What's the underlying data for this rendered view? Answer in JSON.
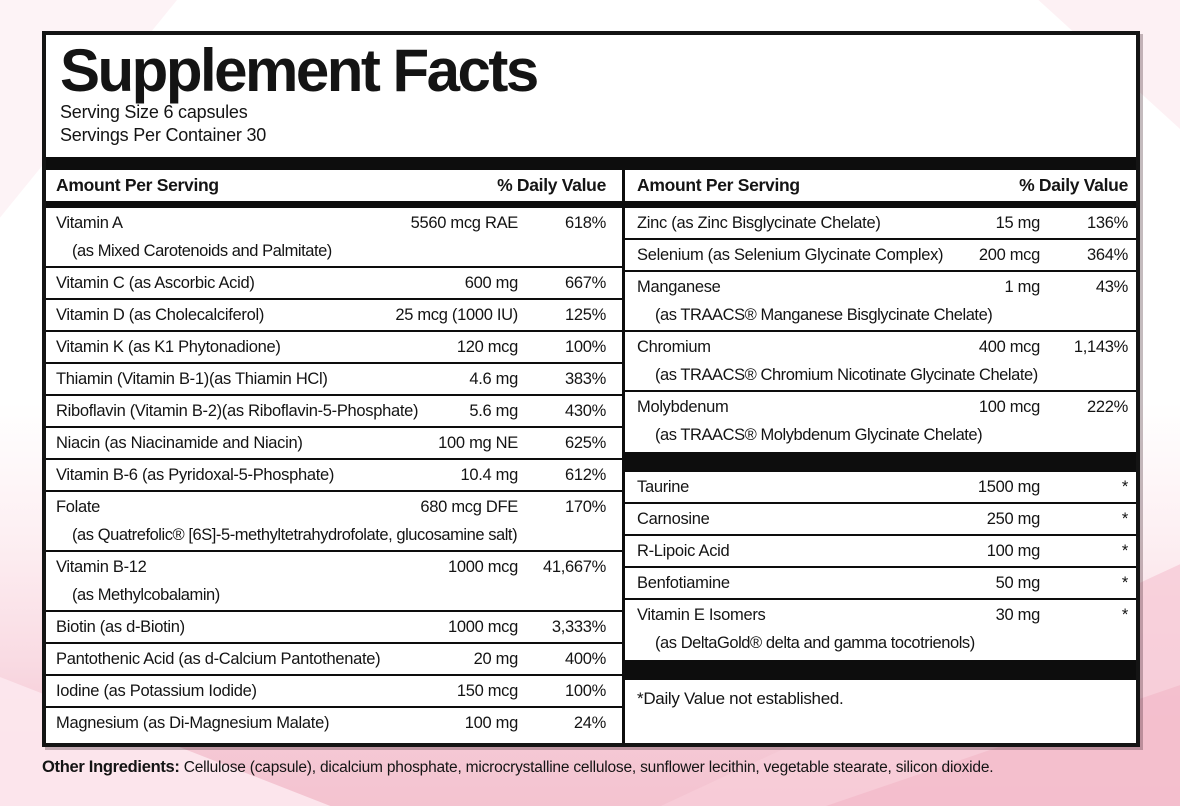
{
  "page": {
    "colors": {
      "pink_strong": "#f4c3d0",
      "pink_medium": "#f6c9d5",
      "pink_light": "#fbe4ea",
      "panel_border": "#141414"
    }
  },
  "label": {
    "title": "Supplement Facts",
    "serving_size": "Serving Size 6 capsules",
    "servings_per_container": "Servings Per Container 30",
    "column_headers": {
      "amount": "Amount Per Serving",
      "daily_value": "% Daily Value"
    },
    "left_column": {
      "rows": [
        {
          "name": "Vitamin A",
          "sub": "(as Mixed Carotenoids and Palmitate)",
          "amount": "5560 mcg RAE",
          "dv": "618%"
        },
        {
          "name": "Vitamin C (as Ascorbic Acid)",
          "amount": "600 mg",
          "dv": "667%"
        },
        {
          "name": "Vitamin D (as Cholecalciferol)",
          "amount": "25 mcg (1000 IU)",
          "dv": "125%"
        },
        {
          "name": "Vitamin K (as K1 Phytonadione)",
          "amount": "120 mcg",
          "dv": "100%"
        },
        {
          "name": "Thiamin (Vitamin B-1)(as Thiamin HCl)",
          "amount": "4.6 mg",
          "dv": "383%"
        },
        {
          "name": "Riboflavin (Vitamin B-2)(as Riboflavin-5-Phosphate)",
          "amount": "5.6 mg",
          "dv": "430%"
        },
        {
          "name": "Niacin (as Niacinamide and Niacin)",
          "amount": "100 mg NE",
          "dv": "625%"
        },
        {
          "name": "Vitamin B-6 (as Pyridoxal-5-Phosphate)",
          "amount": "10.4 mg",
          "dv": "612%"
        },
        {
          "name": "Folate",
          "sub": "(as Quatrefolic® [6S]-5-methyltetrahydrofolate, glucosamine salt)",
          "amount": "680 mcg DFE",
          "dv": "170%"
        },
        {
          "name": "Vitamin B-12",
          "sub": "(as Methylcobalamin)",
          "amount": "1000 mcg",
          "dv": "41,667%"
        },
        {
          "name": "Biotin (as d-Biotin)",
          "amount": "1000 mcg",
          "dv": "3,333%"
        },
        {
          "name": "Pantothenic Acid (as d-Calcium Pantothenate)",
          "amount": "20 mg",
          "dv": "400%"
        },
        {
          "name": "Iodine (as Potassium Iodide)",
          "amount": "150 mcg",
          "dv": "100%"
        },
        {
          "name": "Magnesium (as Di-Magnesium Malate)",
          "amount": "100 mg",
          "dv": "24%"
        }
      ]
    },
    "right_column": {
      "minerals": [
        {
          "name": "Zinc (as Zinc Bisglycinate Chelate)",
          "amount": "15 mg",
          "dv": "136%"
        },
        {
          "name": "Selenium (as Selenium Glycinate Complex)",
          "amount": "200 mcg",
          "dv": "364%"
        },
        {
          "name": "Manganese",
          "sub": "(as TRAACS® Manganese Bisglycinate Chelate)",
          "amount": "1 mg",
          "dv": "43%"
        },
        {
          "name": "Chromium",
          "sub": "(as TRAACS® Chromium Nicotinate Glycinate Chelate)",
          "amount": "400 mcg",
          "dv": "1,143%"
        },
        {
          "name": "Molybdenum",
          "sub": "(as TRAACS® Molybdenum Glycinate Chelate)",
          "amount": "100 mcg",
          "dv": "222%"
        }
      ],
      "other_actives": [
        {
          "name": "Taurine",
          "amount": "1500 mg",
          "dv": "*"
        },
        {
          "name": "Carnosine",
          "amount": "250 mg",
          "dv": "*"
        },
        {
          "name": "R-Lipoic Acid",
          "amount": "100 mg",
          "dv": "*"
        },
        {
          "name": "Benfotiamine",
          "amount": "50 mg",
          "dv": "*"
        },
        {
          "name": "Vitamin E Isomers",
          "sub": "(as DeltaGold® delta and gamma tocotrienols)",
          "amount": "30 mg",
          "dv": "*"
        }
      ],
      "footnote": "*Daily Value not established."
    },
    "other_ingredients": {
      "label": "Other Ingredients:",
      "text": " Cellulose (capsule), dicalcium phosphate, microcrystalline cellulose, sunflower lecithin, vegetable stearate, silicon dioxide."
    }
  }
}
